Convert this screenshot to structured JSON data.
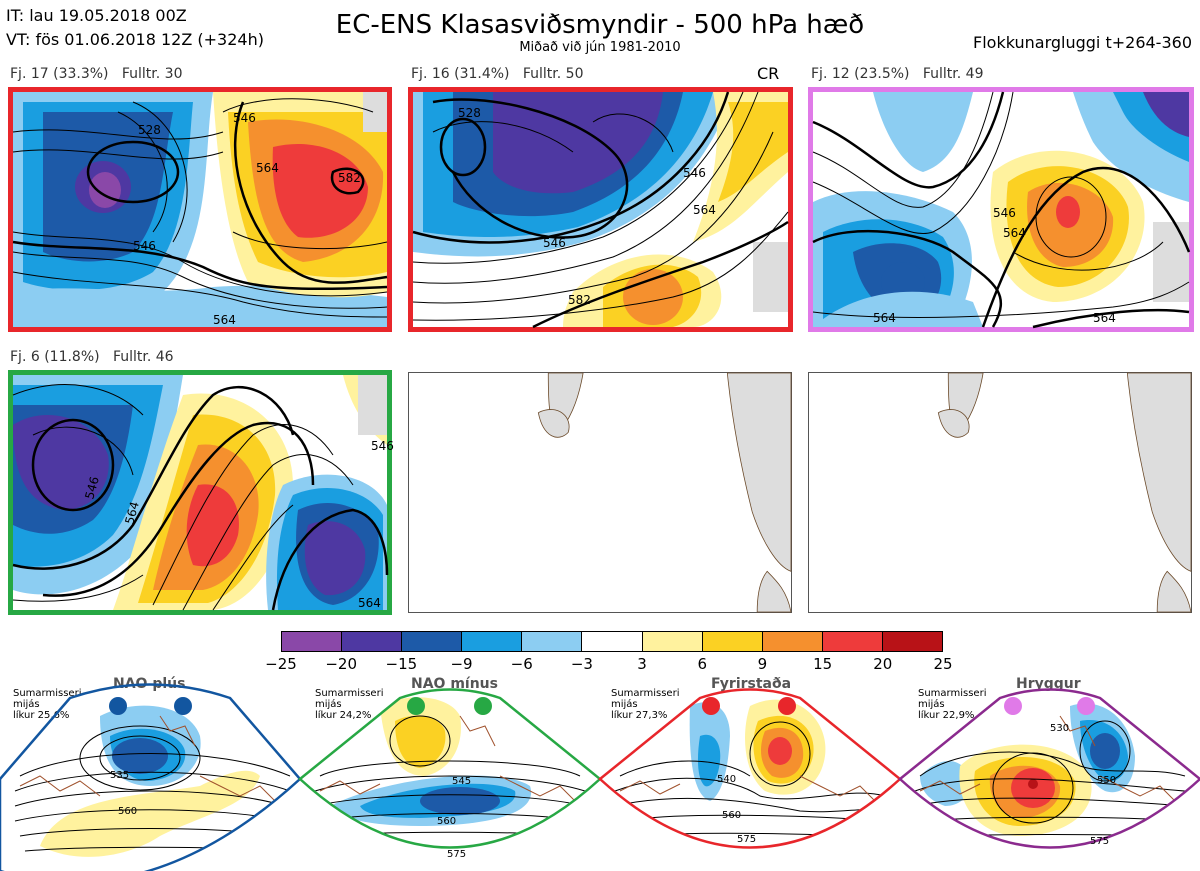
{
  "header": {
    "it_line": "IT: lau 19.05.2018 00Z",
    "vt_line": "VT: fös 01.06.2018 12Z  (+324h)",
    "title": "EC-ENS Klasasviðsmyndir - 500 hPa hæð",
    "subtitle": "Miðað við jún 1981-2010",
    "window_label": "Flokkunargluggi t+264-360"
  },
  "panels": [
    {
      "label": "Fj. 17 (33.3%)   Fulltr. 30",
      "border_color": "#e8262b",
      "contour_labels": [
        "528",
        "546",
        "564",
        "582",
        "546",
        "564"
      ]
    },
    {
      "label": "Fj. 16 (31.4%)   Fulltr. 50",
      "border_color": "#e8262b",
      "badge": "CR",
      "contour_labels": [
        "528",
        "546",
        "564",
        "546",
        "582"
      ]
    },
    {
      "label": "Fj. 12 (23.5%)   Fulltr. 49",
      "border_color": "#e07ae8",
      "contour_labels": [
        "546",
        "564",
        "564",
        "564"
      ]
    },
    {
      "label": "Fj. 6 (11.8%)   Fulltr. 46",
      "border_color": "#27a844",
      "contour_labels": [
        "546",
        "564",
        "546",
        "564"
      ]
    }
  ],
  "colorbar": {
    "colors": [
      "#8a48a8",
      "#4e38a2",
      "#1d5aa8",
      "#1a9ee0",
      "#8ccdf2",
      "#ffffff",
      "#fff29e",
      "#fbd123",
      "#f5902e",
      "#ee3b3b",
      "#b81217"
    ],
    "ticks": [
      "−25",
      "−20",
      "−15",
      "−9",
      "−6",
      "−3",
      "3",
      "6",
      "9",
      "15",
      "20",
      "25"
    ]
  },
  "regimes": [
    {
      "title": "NAO plús",
      "note": [
        "Sumarmisseri",
        "mijás",
        "líkur 25,6%"
      ],
      "color": "#1256a0",
      "contour_labels": [
        "535",
        "560"
      ]
    },
    {
      "title": "NAO mínus",
      "note": [
        "Sumarmisseri",
        "mijás",
        "líkur 24,2%"
      ],
      "color": "#27a844",
      "contour_labels": [
        "545",
        "560",
        "575"
      ]
    },
    {
      "title": "Fyrirstaða",
      "note": [
        "Sumarmisseri",
        "mijás",
        "líkur 27,3%"
      ],
      "color": "#e8262b",
      "contour_labels": [
        "540",
        "560",
        "575"
      ]
    },
    {
      "title": "Hryggur",
      "note": [
        "Sumarmisseri",
        "mijás",
        "líkur 22,9%"
      ],
      "color": "#e07ae8",
      "contour_labels": [
        "530",
        "550",
        "575"
      ]
    }
  ]
}
